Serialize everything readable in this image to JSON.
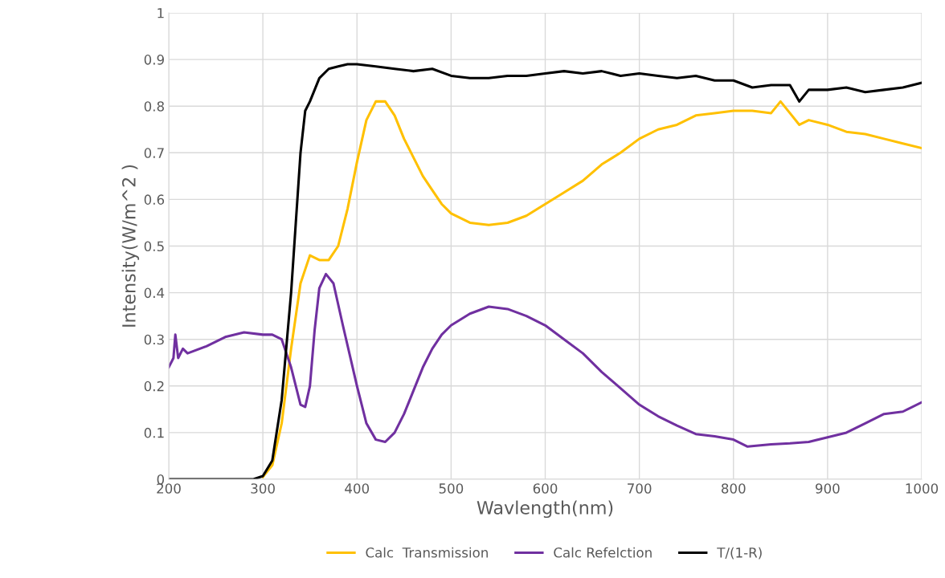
{
  "chart_data": {
    "type": "line",
    "xlabel": "Wavlength(nm)",
    "ylabel": "Intensity(W/m^2 )",
    "xlim": [
      200,
      1000
    ],
    "xticks": [
      200,
      300,
      400,
      500,
      600,
      700,
      800,
      900,
      1000
    ],
    "ylim": [
      0,
      1
    ],
    "yticks": [
      0,
      0.1,
      0.2,
      0.3,
      0.4,
      0.5,
      0.6,
      0.7,
      0.8,
      0.9,
      1
    ],
    "grid": true,
    "legend": "bottom",
    "marker": "none",
    "line_style": "solid",
    "series": [
      {
        "name": "Calc  Transmission",
        "color": "#ffc000",
        "x": [
          300,
          310,
          320,
          330,
          340,
          350,
          360,
          370,
          380,
          390,
          400,
          410,
          420,
          430,
          440,
          450,
          460,
          470,
          480,
          490,
          500,
          520,
          540,
          560,
          580,
          600,
          620,
          640,
          660,
          680,
          700,
          720,
          740,
          760,
          780,
          800,
          820,
          840,
          850,
          860,
          870,
          880,
          900,
          920,
          940,
          960,
          980,
          1000
        ],
        "values": [
          0.005,
          0.03,
          0.12,
          0.28,
          0.42,
          0.48,
          0.47,
          0.47,
          0.5,
          0.58,
          0.68,
          0.77,
          0.81,
          0.81,
          0.78,
          0.73,
          0.69,
          0.65,
          0.62,
          0.59,
          0.57,
          0.55,
          0.545,
          0.55,
          0.565,
          0.59,
          0.615,
          0.64,
          0.675,
          0.7,
          0.73,
          0.75,
          0.76,
          0.78,
          0.785,
          0.79,
          0.79,
          0.785,
          0.81,
          0.785,
          0.76,
          0.77,
          0.76,
          0.745,
          0.74,
          0.73,
          0.72,
          0.71
        ]
      },
      {
        "name": "Calc Refelction",
        "color": "#7030a0",
        "x": [
          200,
          205,
          207,
          210,
          215,
          220,
          240,
          260,
          280,
          300,
          310,
          320,
          330,
          340,
          345,
          350,
          355,
          360,
          367,
          375,
          385,
          400,
          410,
          420,
          430,
          440,
          450,
          460,
          470,
          480,
          490,
          500,
          520,
          540,
          560,
          580,
          600,
          620,
          640,
          660,
          680,
          700,
          720,
          740,
          760,
          780,
          800,
          815,
          840,
          860,
          880,
          900,
          920,
          930,
          940,
          960,
          980,
          1000
        ],
        "values": [
          0.24,
          0.26,
          0.31,
          0.26,
          0.28,
          0.27,
          0.285,
          0.305,
          0.315,
          0.31,
          0.31,
          0.3,
          0.24,
          0.16,
          0.155,
          0.2,
          0.32,
          0.41,
          0.44,
          0.42,
          0.33,
          0.2,
          0.12,
          0.085,
          0.08,
          0.1,
          0.14,
          0.19,
          0.24,
          0.28,
          0.31,
          0.33,
          0.355,
          0.37,
          0.365,
          0.35,
          0.33,
          0.3,
          0.27,
          0.23,
          0.195,
          0.16,
          0.135,
          0.115,
          0.097,
          0.092,
          0.085,
          0.07,
          0.075,
          0.077,
          0.08,
          0.09,
          0.1,
          0.11,
          0.12,
          0.14,
          0.145,
          0.165
        ]
      },
      {
        "name": "T/(1-R)",
        "color": "#000000",
        "x": [
          200,
          250,
          290,
          300,
          310,
          320,
          330,
          335,
          340,
          345,
          350,
          360,
          370,
          380,
          390,
          400,
          420,
          440,
          460,
          480,
          500,
          520,
          540,
          560,
          580,
          600,
          620,
          640,
          660,
          680,
          700,
          720,
          740,
          760,
          780,
          800,
          820,
          840,
          860,
          870,
          880,
          900,
          920,
          940,
          960,
          980,
          1000
        ],
        "values": [
          0,
          0,
          0,
          0.007,
          0.04,
          0.17,
          0.4,
          0.55,
          0.7,
          0.79,
          0.81,
          0.86,
          0.88,
          0.885,
          0.89,
          0.89,
          0.885,
          0.88,
          0.875,
          0.88,
          0.865,
          0.86,
          0.86,
          0.865,
          0.865,
          0.87,
          0.875,
          0.87,
          0.875,
          0.865,
          0.87,
          0.865,
          0.86,
          0.865,
          0.855,
          0.855,
          0.84,
          0.845,
          0.845,
          0.81,
          0.835,
          0.835,
          0.84,
          0.83,
          0.835,
          0.84,
          0.85
        ]
      }
    ]
  }
}
